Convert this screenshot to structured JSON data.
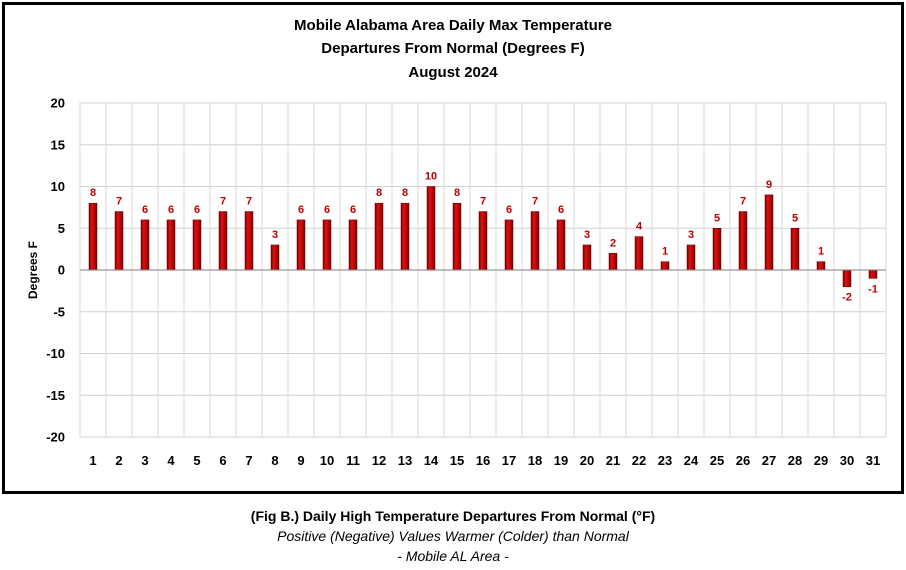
{
  "chart_data": {
    "type": "bar",
    "title": [
      "Mobile Alabama Area Daily Max Temperature",
      "Departures From Normal (Degrees F)",
      "August 2024"
    ],
    "xlabel": "",
    "ylabel": "Degrees F",
    "ylim": [
      -20,
      20
    ],
    "yticks": [
      20,
      15,
      10,
      5,
      0,
      -5,
      -10,
      -15,
      -20
    ],
    "categories": [
      "1",
      "2",
      "3",
      "4",
      "5",
      "6",
      "7",
      "8",
      "9",
      "10",
      "11",
      "12",
      "13",
      "14",
      "15",
      "16",
      "17",
      "18",
      "19",
      "20",
      "21",
      "22",
      "23",
      "24",
      "25",
      "26",
      "27",
      "28",
      "29",
      "30",
      "31"
    ],
    "values": [
      8,
      7,
      6,
      6,
      6,
      7,
      7,
      3,
      6,
      6,
      6,
      8,
      8,
      10,
      8,
      7,
      6,
      7,
      6,
      3,
      2,
      4,
      1,
      3,
      5,
      7,
      9,
      5,
      1,
      -2,
      -1
    ],
    "grid": true,
    "bar_color": "#c00000",
    "label_color": "#c00000"
  },
  "caption": {
    "line1": "(Fig B.) Daily High Temperature Departures From Normal (°F)",
    "line2": "Positive (Negative) Values Warmer (Colder) than Normal",
    "line3": "- Mobile AL Area -"
  }
}
